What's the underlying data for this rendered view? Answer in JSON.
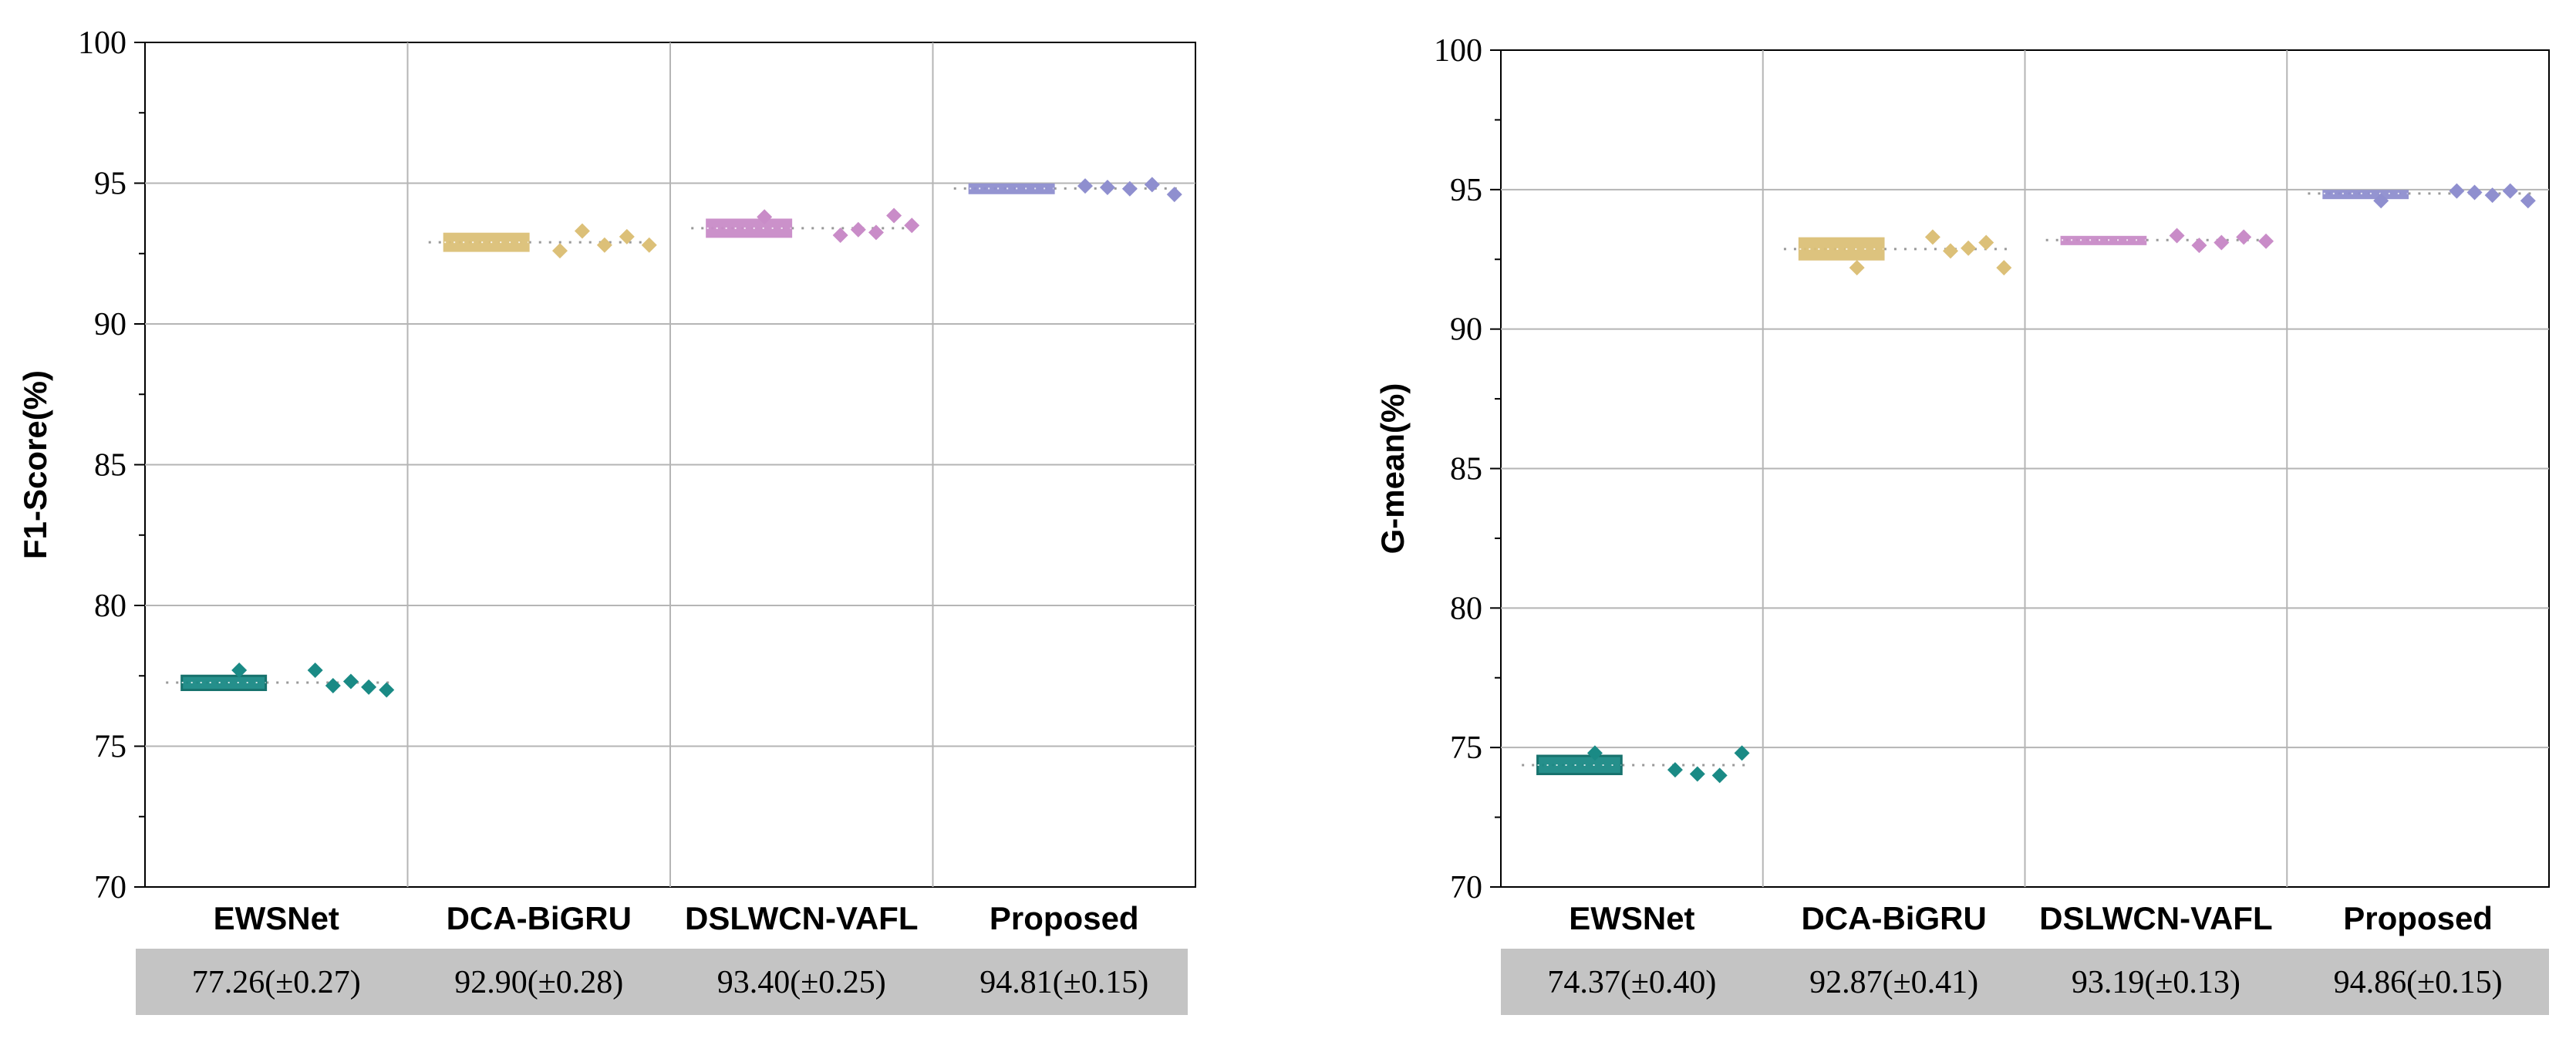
{
  "chart_data": [
    {
      "type": "box",
      "ylabel": "F1-Score(%)",
      "ylim": [
        70,
        100
      ],
      "yticks": [
        "70",
        "75",
        "80",
        "85",
        "90",
        "95",
        "100"
      ],
      "categories": [
        "EWSNet",
        "DCA-BiGRU",
        "DSLWCN-VAFL",
        "Proposed"
      ],
      "colors": [
        "#1a8a85",
        "#dcc078",
        "#c98cc8",
        "#8f8fcf"
      ],
      "means": [
        77.26,
        92.9,
        93.4,
        94.81
      ],
      "box_ranges": [
        [
          77.0,
          77.5
        ],
        [
          92.6,
          93.2
        ],
        [
          93.1,
          93.7
        ],
        [
          94.65,
          94.95
        ]
      ],
      "points": [
        [
          77.7,
          77.7,
          77.15,
          77.3,
          77.1,
          77.0
        ],
        [
          92.6,
          93.3,
          92.8,
          93.1,
          92.8
        ],
        [
          93.8,
          93.15,
          93.35,
          93.25,
          93.85,
          93.5
        ],
        [
          94.9,
          94.85,
          94.8,
          94.95,
          94.6
        ]
      ],
      "stat_labels": [
        "77.26(±0.27)",
        "92.90(±0.28)",
        "93.40(±0.25)",
        "94.81(±0.15)"
      ]
    },
    {
      "type": "box",
      "ylabel": "G-mean(%)",
      "ylim": [
        70,
        100
      ],
      "yticks": [
        "70",
        "75",
        "80",
        "85",
        "90",
        "95",
        "100"
      ],
      "categories": [
        "EWSNet",
        "DCA-BiGRU",
        "DSLWCN-VAFL",
        "Proposed"
      ],
      "colors": [
        "#1a8a85",
        "#dcc078",
        "#c98cc8",
        "#8f8fcf"
      ],
      "means": [
        74.37,
        92.87,
        93.19,
        94.86
      ],
      "box_ranges": [
        [
          74.05,
          74.7
        ],
        [
          92.5,
          93.25
        ],
        [
          93.05,
          93.3
        ],
        [
          94.7,
          94.95
        ]
      ],
      "points": [
        [
          74.8,
          74.2,
          74.05,
          74.0,
          74.8
        ],
        [
          92.2,
          93.3,
          92.8,
          92.9,
          93.1,
          92.2
        ],
        [
          93.35,
          93.0,
          93.1,
          93.3,
          93.15
        ],
        [
          94.6,
          94.95,
          94.9,
          94.8,
          94.95,
          94.6
        ]
      ],
      "stat_labels": [
        "74.37(±0.40)",
        "92.87(±0.41)",
        "93.19(±0.13)",
        "94.86(±0.15)"
      ]
    }
  ]
}
